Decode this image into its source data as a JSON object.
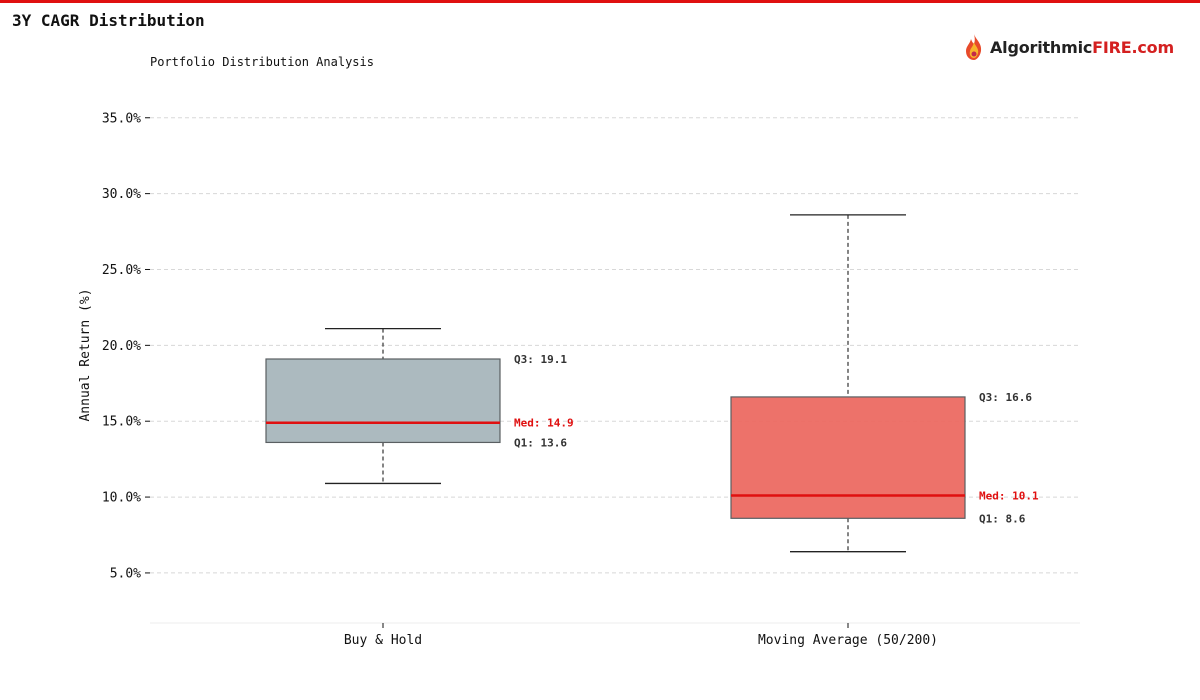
{
  "header": {
    "title": "3Y CAGR Distribution",
    "subtitle": "Portfolio Distribution Analysis"
  },
  "logo": {
    "icon": "flame-icon",
    "text_dark": "Algorithmic",
    "text_red": "FIRE.com"
  },
  "colors": {
    "accent": "#e01010",
    "box_buy_hold": "#a8b6bc",
    "box_moving_avg": "#ec6a62",
    "median_line": "#e01010",
    "grid": "#d8d8d8",
    "text": "#111111",
    "label_dark": "#333333"
  },
  "chart_data": {
    "type": "box",
    "title": "3Y CAGR Distribution",
    "subtitle": "Portfolio Distribution Analysis",
    "ylabel": "Annual Return (%)",
    "xlabel": "",
    "ylim": [
      1.7,
      36.5
    ],
    "yticks": [
      5,
      10,
      15,
      20,
      25,
      30,
      35
    ],
    "ytick_labels": [
      "5.0%",
      "10.0%",
      "15.0%",
      "20.0%",
      "25.0%",
      "30.0%",
      "35.0%"
    ],
    "grid": true,
    "categories": [
      "Buy & Hold",
      "Moving Average (50/200)"
    ],
    "series": [
      {
        "category": "Buy & Hold",
        "whisker_low": 10.9,
        "q1": 13.6,
        "median": 14.9,
        "q3": 19.1,
        "whisker_high": 21.1,
        "color": "#a8b6bc",
        "labels": {
          "q3": "Q3: 19.1",
          "median": "Med: 14.9",
          "q1": "Q1: 13.6"
        }
      },
      {
        "category": "Moving Average (50/200)",
        "whisker_low": 6.4,
        "q1": 8.6,
        "median": 10.1,
        "q3": 16.6,
        "whisker_high": 28.6,
        "color": "#ec6a62",
        "labels": {
          "q3": "Q3: 16.6",
          "median": "Med: 10.1",
          "q1": "Q1: 8.6"
        }
      }
    ]
  }
}
